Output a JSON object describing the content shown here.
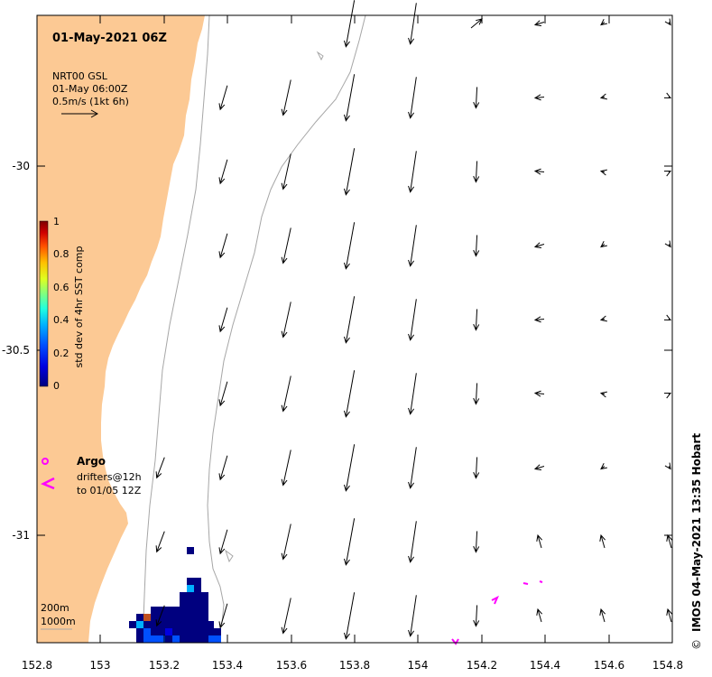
{
  "title": "01-May-2021 06Z",
  "product": {
    "line1": "NRT00 GSL",
    "line2": "01-May 06:00Z",
    "line3": "0.5m/s (1kt 6h)"
  },
  "colorbar": {
    "label": "std dev of 4hr SST comp",
    "ticks": [
      "0",
      "0.2",
      "0.4",
      "0.6",
      "0.8",
      "1"
    ],
    "colors": [
      "#00007f",
      "#0000e0",
      "#0050ff",
      "#00b0ff",
      "#20ffdf",
      "#80ff80",
      "#dfff20",
      "#ffc000",
      "#ff5000",
      "#d00000",
      "#7f0000"
    ]
  },
  "legend": {
    "argo_label": "Argo",
    "drifters_line1": "drifters@12h",
    "drifters_line2": "to 01/05 12Z",
    "depth_200": "200m",
    "depth_1000": "1000m"
  },
  "axes": {
    "x_ticks": [
      "152.8",
      "153",
      "153.2",
      "153.4",
      "153.6",
      "153.8",
      "154",
      "154.2",
      "154.4",
      "154.6",
      "154.8"
    ],
    "y_ticks": [
      "-30",
      "-30.5",
      "-31"
    ]
  },
  "credit": "IMOS 04-May-2021 13:35 Hobart",
  "copyright_symbol": "©",
  "colors": {
    "land": "#fcc994",
    "ocean": "#ffffff",
    "isobath": "#a6a6a6",
    "marker": "#ff00ff",
    "sst_dark": "#00007f"
  }
}
